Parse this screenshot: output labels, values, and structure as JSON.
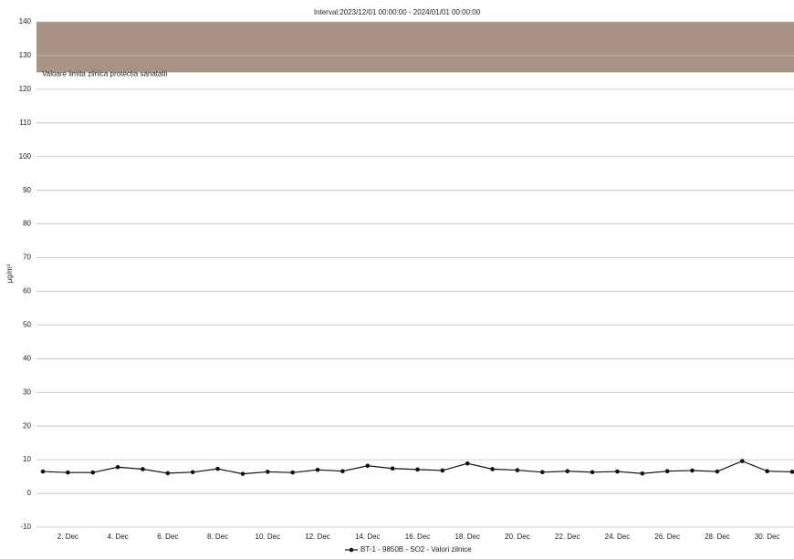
{
  "chart_data": {
    "type": "line",
    "title": "Interval:2023/12/01 00:00:00 - 2024/01/01 00:00:00",
    "y_label": "µg/m³",
    "categories": [
      null,
      "2. Dec",
      null,
      "4. Dec",
      null,
      "6. Dec",
      null,
      "8. Dec",
      null,
      "10. Dec",
      null,
      "12. Dec",
      null,
      "14. Dec",
      null,
      "16. Dec",
      null,
      "18. Dec",
      null,
      "20. Dec",
      null,
      "22. Dec",
      null,
      "24. Dec",
      null,
      "26. Dec",
      null,
      "28. Dec",
      null,
      "30. Dec",
      null
    ],
    "series": [
      {
        "name": "BT-1 - 9850B - SO2 - Valori zilnice",
        "color": "#111111",
        "values": [
          6.5,
          6.2,
          6.2,
          7.8,
          7.2,
          6.0,
          6.3,
          7.3,
          5.8,
          6.4,
          6.2,
          7.0,
          6.6,
          8.2,
          7.4,
          7.1,
          6.8,
          8.9,
          7.2,
          6.9,
          6.3,
          6.6,
          6.3,
          6.5,
          5.9,
          6.6,
          6.8,
          6.5,
          9.6,
          6.6,
          6.4
        ]
      }
    ],
    "bands": [
      {
        "label": "Valoare limita zilnica protectia sanatatii",
        "from": 125,
        "to": 140,
        "color": "#a89386"
      }
    ],
    "ylim": [
      -10,
      140
    ],
    "yticks": [
      -10,
      0,
      10,
      20,
      30,
      40,
      50,
      60,
      70,
      80,
      90,
      100,
      110,
      120,
      130,
      140
    ],
    "grid": true,
    "legend": "bottom"
  }
}
